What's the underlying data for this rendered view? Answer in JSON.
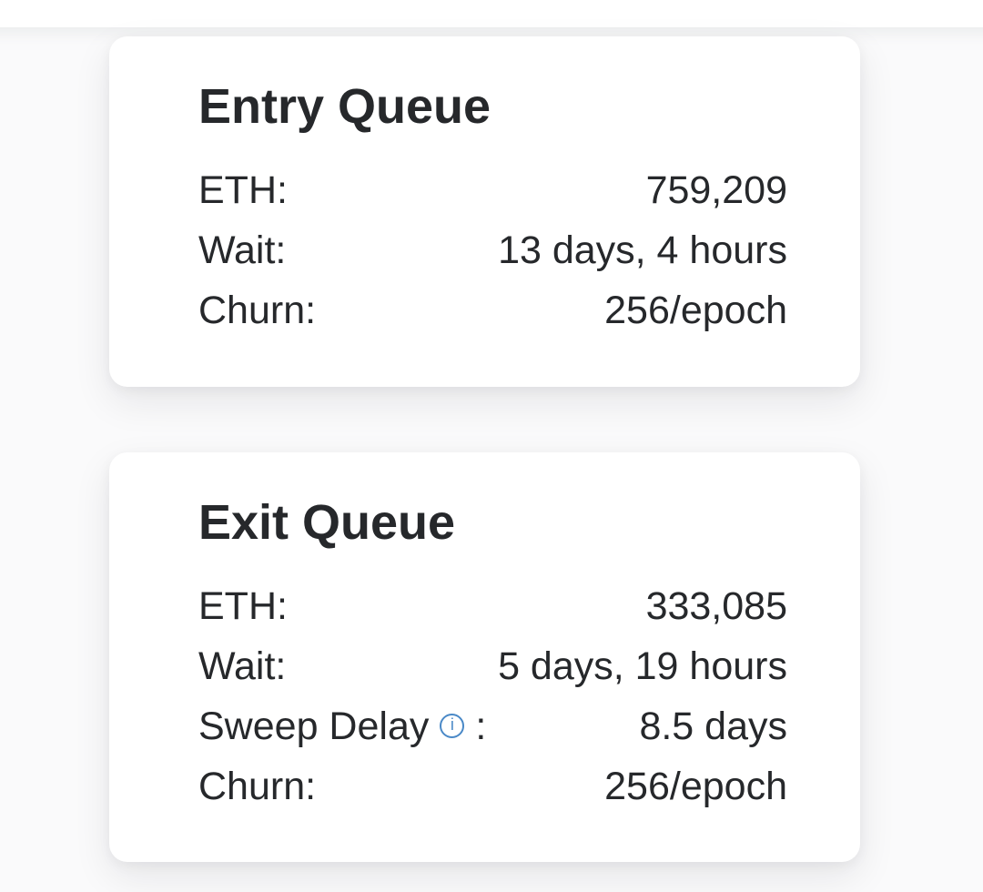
{
  "colors": {
    "page-bg": "#fafafb",
    "card-bg": "#ffffff",
    "text": "#26282b",
    "accent-info": "#4a89c7"
  },
  "icons": {
    "info-glyph": "i"
  },
  "entry_queue": {
    "title": "Entry Queue",
    "rows": {
      "eth": {
        "label": "ETH:",
        "value": "759,209"
      },
      "wait": {
        "label": "Wait:",
        "value": "13 days, 4 hours"
      },
      "churn": {
        "label": "Churn:",
        "value": "256/epoch"
      }
    }
  },
  "exit_queue": {
    "title": "Exit Queue",
    "rows": {
      "eth": {
        "label": "ETH:",
        "value": "333,085"
      },
      "wait": {
        "label": "Wait:",
        "value": "5 days, 19 hours"
      },
      "sweep_delay": {
        "label": "Sweep Delay",
        "suffix": ":",
        "value": "8.5 days"
      },
      "churn": {
        "label": "Churn:",
        "value": "256/epoch"
      }
    }
  }
}
